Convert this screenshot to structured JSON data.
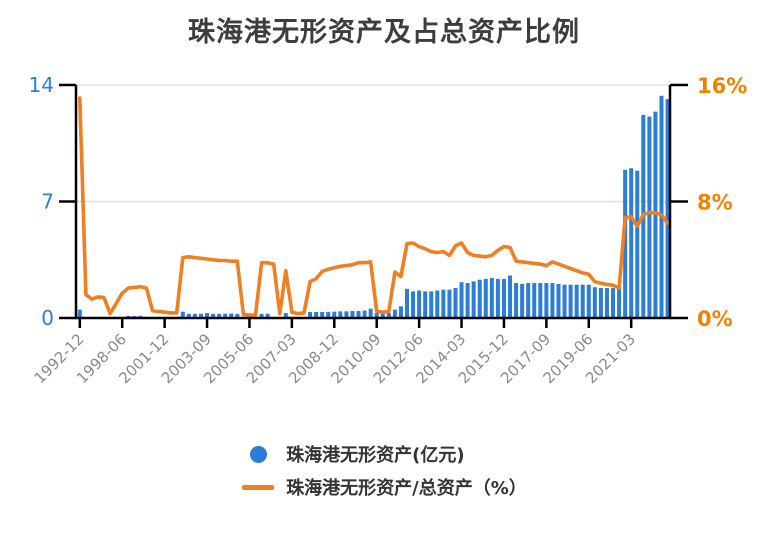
{
  "title": "珠海港无形资产及占总资产比例",
  "colors": {
    "bar": "#2b7ed7",
    "line": "#ef7f22",
    "left_axis_label": "#2f7ed8",
    "right_axis_label": "#f08200",
    "x_label": "#8a8a8a",
    "title_text": "#3d3d3d",
    "grid": "#e0e0e0",
    "axis": "#000000"
  },
  "legend": [
    {
      "label": "珠海港无形资产(亿元)",
      "swatch": "circle"
    },
    {
      "label": "珠海港无形资产/总资产（%）",
      "swatch": "line"
    }
  ],
  "y_axis_left": {
    "ticks": [
      {
        "label": "0",
        "value": 0
      },
      {
        "label": "7",
        "value": 7
      },
      {
        "label": "14",
        "value": 14
      }
    ]
  },
  "y_axis_right": {
    "ticks": [
      {
        "label": "0%",
        "value": 0
      },
      {
        "label": "8%",
        "value": 8
      },
      {
        "label": "16%",
        "value": 16
      }
    ]
  },
  "chart_data": {
    "type": "bar+line",
    "left_ylim": [
      0,
      14
    ],
    "right_ylim": [
      0,
      16
    ],
    "grid": "horizontal",
    "legend_position": "bottom",
    "x_tick_labels": [
      {
        "i": 0,
        "label": "1992-12"
      },
      {
        "i": 7,
        "label": "1998-06"
      },
      {
        "i": 14,
        "label": "2001-12"
      },
      {
        "i": 21,
        "label": "2003-09"
      },
      {
        "i": 28,
        "label": "2005-06"
      },
      {
        "i": 35,
        "label": "2007-03"
      },
      {
        "i": 42,
        "label": "2008-12"
      },
      {
        "i": 49,
        "label": "2010-09"
      },
      {
        "i": 56,
        "label": "2012-06"
      },
      {
        "i": 63,
        "label": "2014-03"
      },
      {
        "i": 70,
        "label": "2015-12"
      },
      {
        "i": 77,
        "label": "2017-09"
      },
      {
        "i": 84,
        "label": "2019-06"
      },
      {
        "i": 91,
        "label": "2021-03"
      }
    ],
    "series": [
      {
        "name": "珠海港无形资产(亿元)",
        "type": "bar",
        "axis": "left",
        "unit": "亿元",
        "values": [
          0.5,
          0,
          0,
          0,
          0,
          0,
          0,
          0,
          0.12,
          0.12,
          0.13,
          0,
          0,
          0,
          0,
          0,
          0,
          0.38,
          0.25,
          0.25,
          0.26,
          0.3,
          0.25,
          0.25,
          0.26,
          0.27,
          0.25,
          0,
          0,
          0,
          0.25,
          0.26,
          0,
          0,
          0.3,
          0,
          0,
          0,
          0.36,
          0.36,
          0.36,
          0.37,
          0.38,
          0.4,
          0.4,
          0.42,
          0.42,
          0.45,
          0.56,
          0.3,
          0.3,
          0.3,
          0.5,
          0.7,
          1.75,
          1.6,
          1.65,
          1.6,
          1.6,
          1.65,
          1.7,
          1.7,
          1.8,
          2.15,
          2.1,
          2.2,
          2.3,
          2.35,
          2.4,
          2.35,
          2.35,
          2.55,
          2.1,
          2.05,
          2.1,
          2.1,
          2.1,
          2.1,
          2.1,
          2.05,
          2.0,
          2.0,
          2.0,
          2.0,
          2.0,
          1.85,
          1.8,
          1.8,
          1.8,
          1.8,
          8.9,
          9.0,
          8.85,
          12.2,
          12.1,
          12.4,
          13.35,
          13.15
        ]
      },
      {
        "name": "珠海港无形资产/总资产（%）",
        "type": "line",
        "axis": "right",
        "unit": "%",
        "values": [
          15.1,
          1.6,
          1.3,
          1.45,
          1.4,
          0.3,
          1.0,
          1.7,
          2.05,
          2.1,
          2.15,
          2.05,
          0.5,
          0.45,
          0.4,
          0.35,
          0.35,
          4.15,
          4.2,
          4.15,
          4.1,
          4.05,
          4.0,
          3.95,
          3.95,
          3.9,
          3.9,
          0.25,
          0.2,
          0.2,
          3.8,
          3.8,
          3.7,
          0.3,
          3.25,
          0.4,
          0.3,
          0.35,
          2.5,
          2.7,
          3.2,
          3.35,
          3.45,
          3.55,
          3.6,
          3.65,
          3.8,
          3.8,
          3.85,
          0.45,
          0.4,
          0.45,
          3.15,
          2.85,
          5.1,
          5.15,
          4.9,
          4.75,
          4.55,
          4.5,
          4.55,
          4.3,
          4.95,
          5.15,
          4.5,
          4.3,
          4.25,
          4.2,
          4.3,
          4.65,
          4.9,
          4.85,
          3.9,
          3.85,
          3.8,
          3.75,
          3.7,
          3.6,
          3.85,
          3.7,
          3.55,
          3.4,
          3.25,
          3.1,
          3.0,
          2.5,
          2.4,
          2.3,
          2.25,
          2.05,
          6.9,
          6.95,
          6.3,
          7.1,
          7.25,
          7.2,
          7.1,
          6.5
        ]
      }
    ]
  }
}
